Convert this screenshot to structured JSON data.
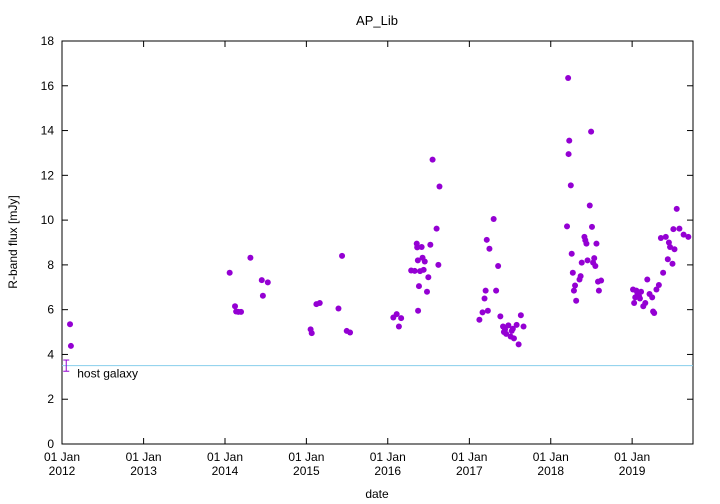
{
  "chart_data": {
    "type": "scatter",
    "title": "AP_Lib",
    "xlabel": "date",
    "ylabel": "R-band flux [mJy]",
    "xlim": [
      "2012-01-01",
      "2019-10-01"
    ],
    "ylim": [
      0,
      18
    ],
    "y_ticks": [
      0,
      2,
      4,
      6,
      8,
      10,
      12,
      14,
      16,
      18
    ],
    "x_ticks": [
      {
        "date": "2012-01-01",
        "line1": "01 Jan",
        "line2": "2012"
      },
      {
        "date": "2013-01-01",
        "line1": "01 Jan",
        "line2": "2013"
      },
      {
        "date": "2014-01-01",
        "line1": "01 Jan",
        "line2": "2014"
      },
      {
        "date": "2015-01-01",
        "line1": "01 Jan",
        "line2": "2015"
      },
      {
        "date": "2016-01-01",
        "line1": "01 Jan",
        "line2": "2016"
      },
      {
        "date": "2017-01-01",
        "line1": "01 Jan",
        "line2": "2017"
      },
      {
        "date": "2018-01-01",
        "line1": "01 Jan",
        "line2": "2018"
      },
      {
        "date": "2019-01-01",
        "line1": "01 Jan",
        "line2": "2019"
      }
    ],
    "grid": false,
    "point_color": "#9400d3",
    "host_galaxy": {
      "label": "host galaxy",
      "value": 3.5,
      "error": 0.25,
      "date": "2012-01-20",
      "line_color": "#87ceeb"
    },
    "points": [
      [
        "2012-02-06",
        5.35
      ],
      [
        "2012-02-10",
        4.38
      ],
      [
        "2014-01-22",
        7.65
      ],
      [
        "2014-02-15",
        6.15
      ],
      [
        "2014-02-20",
        5.92
      ],
      [
        "2014-03-02",
        5.9
      ],
      [
        "2014-03-14",
        5.9
      ],
      [
        "2014-04-25",
        8.32
      ],
      [
        "2014-06-15",
        7.32
      ],
      [
        "2014-06-20",
        6.62
      ],
      [
        "2014-07-12",
        7.22
      ],
      [
        "2015-01-20",
        5.12
      ],
      [
        "2015-01-25",
        4.95
      ],
      [
        "2015-02-15",
        6.25
      ],
      [
        "2015-03-02",
        6.3
      ],
      [
        "2015-05-25",
        6.05
      ],
      [
        "2015-06-10",
        8.4
      ],
      [
        "2015-07-01",
        5.05
      ],
      [
        "2015-07-16",
        4.98
      ],
      [
        "2016-01-26",
        5.65
      ],
      [
        "2016-02-10",
        5.8
      ],
      [
        "2016-02-20",
        5.25
      ],
      [
        "2016-03-01",
        5.62
      ],
      [
        "2016-04-15",
        7.75
      ],
      [
        "2016-05-01",
        7.73
      ],
      [
        "2016-05-10",
        8.95
      ],
      [
        "2016-05-12",
        8.78
      ],
      [
        "2016-05-15",
        8.2
      ],
      [
        "2016-05-16",
        5.95
      ],
      [
        "2016-05-20",
        7.05
      ],
      [
        "2016-05-25",
        7.72
      ],
      [
        "2016-06-01",
        8.8
      ],
      [
        "2016-06-05",
        8.32
      ],
      [
        "2016-06-10",
        7.78
      ],
      [
        "2016-06-15",
        8.15
      ],
      [
        "2016-06-25",
        6.8
      ],
      [
        "2016-07-01",
        7.45
      ],
      [
        "2016-07-10",
        8.9
      ],
      [
        "2016-07-20",
        12.7
      ],
      [
        "2016-08-07",
        9.62
      ],
      [
        "2016-08-15",
        8.0
      ],
      [
        "2016-08-20",
        11.5
      ],
      [
        "2017-02-15",
        5.55
      ],
      [
        "2017-03-01",
        5.88
      ],
      [
        "2017-03-10",
        6.5
      ],
      [
        "2017-03-15",
        6.85
      ],
      [
        "2017-03-20",
        9.12
      ],
      [
        "2017-03-25",
        5.95
      ],
      [
        "2017-04-01",
        8.72
      ],
      [
        "2017-04-20",
        10.05
      ],
      [
        "2017-05-01",
        6.85
      ],
      [
        "2017-05-10",
        7.95
      ],
      [
        "2017-05-20",
        5.7
      ],
      [
        "2017-06-01",
        5.25
      ],
      [
        "2017-06-05",
        5.0
      ],
      [
        "2017-06-10",
        5.12
      ],
      [
        "2017-06-15",
        4.92
      ],
      [
        "2017-06-25",
        5.3
      ],
      [
        "2017-07-05",
        4.8
      ],
      [
        "2017-07-10",
        5.05
      ],
      [
        "2017-07-15",
        5.15
      ],
      [
        "2017-07-20",
        4.72
      ],
      [
        "2017-08-01",
        5.32
      ],
      [
        "2017-08-10",
        4.45
      ],
      [
        "2017-08-20",
        5.75
      ],
      [
        "2017-09-01",
        5.25
      ],
      [
        "2018-03-15",
        9.72
      ],
      [
        "2018-03-20",
        16.35
      ],
      [
        "2018-03-22",
        12.95
      ],
      [
        "2018-03-25",
        13.55
      ],
      [
        "2018-04-01",
        11.55
      ],
      [
        "2018-04-05",
        8.5
      ],
      [
        "2018-04-10",
        7.65
      ],
      [
        "2018-04-15",
        6.85
      ],
      [
        "2018-04-20",
        7.08
      ],
      [
        "2018-04-25",
        6.4
      ],
      [
        "2018-05-10",
        7.35
      ],
      [
        "2018-05-15",
        7.5
      ],
      [
        "2018-05-20",
        8.1
      ],
      [
        "2018-06-01",
        9.25
      ],
      [
        "2018-06-05",
        9.1
      ],
      [
        "2018-06-10",
        8.95
      ],
      [
        "2018-06-15",
        8.2
      ],
      [
        "2018-06-25",
        10.65
      ],
      [
        "2018-07-01",
        13.95
      ],
      [
        "2018-07-05",
        9.7
      ],
      [
        "2018-07-10",
        8.1
      ],
      [
        "2018-07-15",
        8.3
      ],
      [
        "2018-07-20",
        7.95
      ],
      [
        "2018-07-25",
        8.95
      ],
      [
        "2018-08-01",
        7.25
      ],
      [
        "2018-08-05",
        6.85
      ],
      [
        "2018-08-15",
        7.3
      ],
      [
        "2019-01-05",
        6.9
      ],
      [
        "2019-01-10",
        6.3
      ],
      [
        "2019-01-15",
        6.55
      ],
      [
        "2019-01-20",
        6.85
      ],
      [
        "2019-01-25",
        6.72
      ],
      [
        "2019-02-01",
        6.6
      ],
      [
        "2019-02-05",
        6.5
      ],
      [
        "2019-02-10",
        6.8
      ],
      [
        "2019-02-20",
        6.15
      ],
      [
        "2019-03-01",
        6.3
      ],
      [
        "2019-03-10",
        7.35
      ],
      [
        "2019-03-20",
        6.7
      ],
      [
        "2019-04-01",
        6.55
      ],
      [
        "2019-04-05",
        5.92
      ],
      [
        "2019-04-10",
        5.85
      ],
      [
        "2019-04-20",
        6.9
      ],
      [
        "2019-05-01",
        7.1
      ],
      [
        "2019-05-10",
        9.2
      ],
      [
        "2019-05-20",
        7.65
      ],
      [
        "2019-06-01",
        9.25
      ],
      [
        "2019-06-10",
        8.25
      ],
      [
        "2019-06-15",
        9.0
      ],
      [
        "2019-06-20",
        8.8
      ],
      [
        "2019-07-01",
        8.05
      ],
      [
        "2019-07-05",
        9.6
      ],
      [
        "2019-07-10",
        8.7
      ],
      [
        "2019-07-20",
        10.5
      ],
      [
        "2019-08-01",
        9.62
      ],
      [
        "2019-08-20",
        9.35
      ],
      [
        "2019-09-10",
        9.25
      ]
    ]
  }
}
